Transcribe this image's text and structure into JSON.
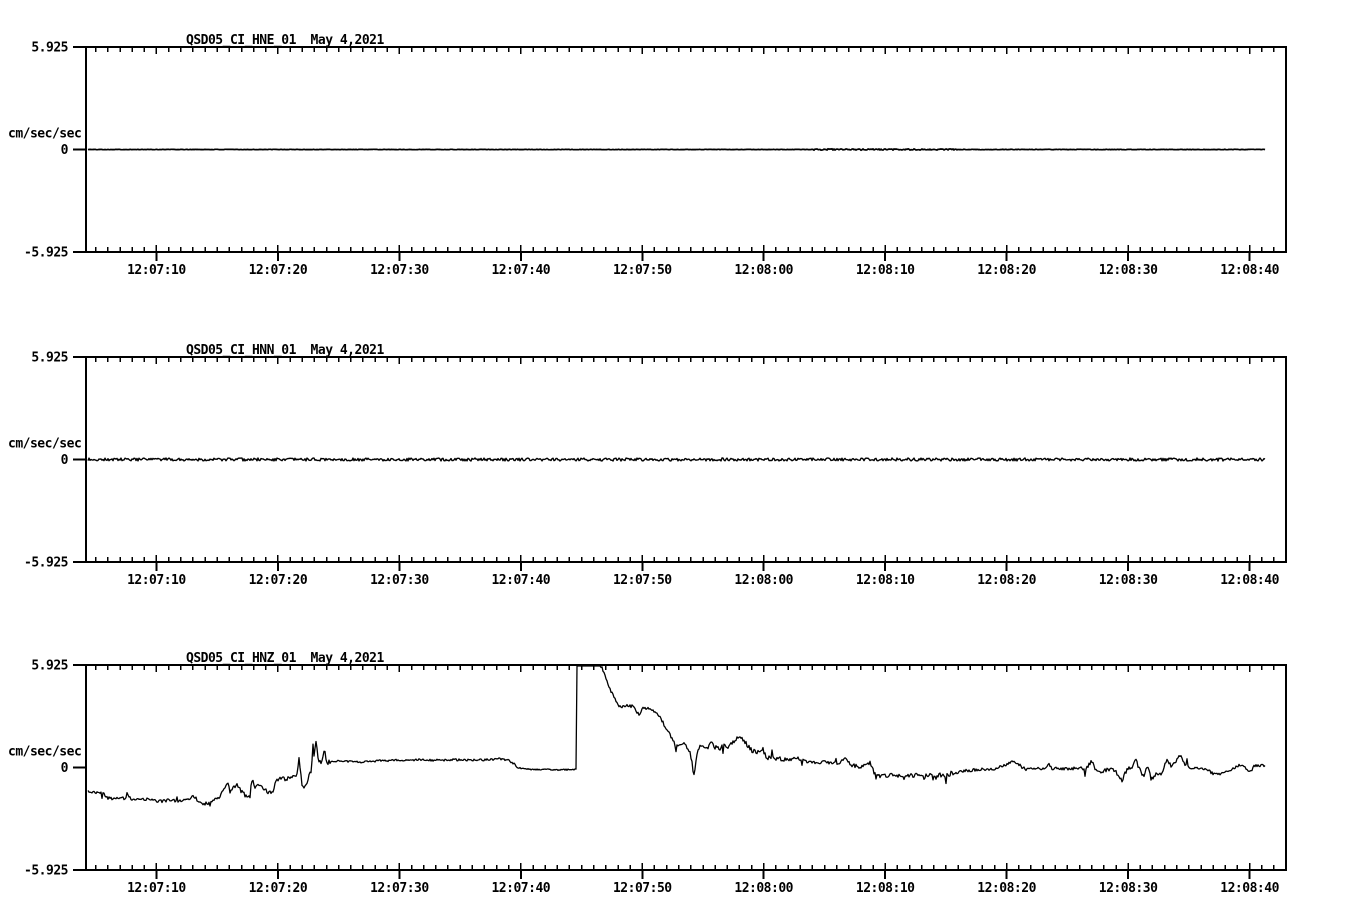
{
  "page": {
    "background": "#ffffff",
    "ink_color": "#000000",
    "description": "Three stacked seismic acceleration time-series panels"
  },
  "chart_data": [
    {
      "type": "line",
      "title": "QSD05_CI_HNE_01",
      "date": "May 4,2021",
      "ylabel": "cm/sec/sec",
      "ylim": [
        -5.925,
        5.925
      ],
      "y_ticks": [
        {
          "v": 5.925,
          "label": "5.925"
        },
        {
          "v": 0,
          "label": "0"
        },
        {
          "v": -5.925,
          "label": "-5.925"
        }
      ],
      "t_domain": [
        4.2,
        103
      ],
      "x_minor_interval_s": 1,
      "x_major_interval_s": 10,
      "x_ticks": [
        {
          "t": 10,
          "label": "12:07:10"
        },
        {
          "t": 20,
          "label": "12:07:20"
        },
        {
          "t": 30,
          "label": "12:07:30"
        },
        {
          "t": 40,
          "label": "12:07:40"
        },
        {
          "t": 50,
          "label": "12:07:50"
        },
        {
          "t": 60,
          "label": "12:08:00"
        },
        {
          "t": 70,
          "label": "12:08:10"
        },
        {
          "t": 80,
          "label": "12:08:20"
        },
        {
          "t": 90,
          "label": "12:08:30"
        },
        {
          "t": 100,
          "label": "12:08:40"
        }
      ],
      "trace": {
        "t_range": [
          4.4,
          101.3
        ],
        "keypoints": [
          [
            4.4,
            0
          ],
          [
            101.3,
            0
          ]
        ],
        "noise": [
          [
            4.2,
            64,
            0.013
          ],
          [
            64,
            76,
            0.04
          ],
          [
            76,
            103,
            0.016
          ]
        ]
      }
    },
    {
      "type": "line",
      "title": "QSD05_CI_HNN_01",
      "date": "May 4,2021",
      "ylabel": "cm/sec/sec",
      "ylim": [
        -5.925,
        5.925
      ],
      "y_ticks": [
        {
          "v": 5.925,
          "label": "5.925"
        },
        {
          "v": 0,
          "label": "0"
        },
        {
          "v": -5.925,
          "label": "-5.925"
        }
      ],
      "t_domain": [
        4.2,
        103
      ],
      "x_minor_interval_s": 1,
      "x_major_interval_s": 10,
      "x_ticks": [
        {
          "t": 10,
          "label": "12:07:10"
        },
        {
          "t": 20,
          "label": "12:07:20"
        },
        {
          "t": 30,
          "label": "12:07:30"
        },
        {
          "t": 40,
          "label": "12:07:40"
        },
        {
          "t": 50,
          "label": "12:07:50"
        },
        {
          "t": 60,
          "label": "12:08:00"
        },
        {
          "t": 70,
          "label": "12:08:10"
        },
        {
          "t": 80,
          "label": "12:08:20"
        },
        {
          "t": 90,
          "label": "12:08:30"
        },
        {
          "t": 100,
          "label": "12:08:40"
        }
      ],
      "trace": {
        "t_range": [
          4.4,
          101.3
        ],
        "keypoints": [
          [
            4.4,
            0
          ],
          [
            101.3,
            0
          ]
        ],
        "noise": [
          [
            4.2,
            103,
            0.085
          ]
        ]
      }
    },
    {
      "type": "line",
      "title": "QSD05_CI_HNZ_01",
      "date": "May 4,2021",
      "ylabel": "cm/sec/sec",
      "ylim": [
        -5.925,
        5.925
      ],
      "y_ticks": [
        {
          "v": 5.925,
          "label": "5.925"
        },
        {
          "v": 0,
          "label": "0"
        },
        {
          "v": -5.925,
          "label": "-5.925"
        }
      ],
      "t_domain": [
        4.2,
        103
      ],
      "x_minor_interval_s": 1,
      "x_major_interval_s": 10,
      "x_ticks": [
        {
          "t": 10,
          "label": "12:07:10"
        },
        {
          "t": 20,
          "label": "12:07:20"
        },
        {
          "t": 30,
          "label": "12:07:30"
        },
        {
          "t": 40,
          "label": "12:07:40"
        },
        {
          "t": 50,
          "label": "12:07:50"
        },
        {
          "t": 60,
          "label": "12:08:00"
        },
        {
          "t": 70,
          "label": "12:08:10"
        },
        {
          "t": 80,
          "label": "12:08:20"
        },
        {
          "t": 90,
          "label": "12:08:30"
        },
        {
          "t": 100,
          "label": "12:08:40"
        }
      ],
      "trace": {
        "t_range": [
          4.4,
          101.3
        ],
        "clip_level": 5.925,
        "keypoints": [
          [
            4.4,
            -1.4
          ],
          [
            5.2,
            -1.42
          ],
          [
            5.6,
            -1.5
          ],
          [
            5.9,
            -1.75
          ],
          [
            6.7,
            -1.82
          ],
          [
            7.4,
            -1.78
          ],
          [
            7.6,
            -1.5
          ],
          [
            7.9,
            -1.85
          ],
          [
            8.8,
            -1.8
          ],
          [
            9.7,
            -1.88
          ],
          [
            10.2,
            -1.95
          ],
          [
            11,
            -1.9
          ],
          [
            11.8,
            -1.95
          ],
          [
            12.6,
            -1.88
          ],
          [
            13.1,
            -1.65
          ],
          [
            13.5,
            -2.0
          ],
          [
            14,
            -2.1
          ],
          [
            14.6,
            -1.97
          ],
          [
            15.2,
            -1.7
          ],
          [
            15.85,
            -0.8
          ],
          [
            16.05,
            -1.4
          ],
          [
            16.3,
            -1.12
          ],
          [
            16.6,
            -1.02
          ],
          [
            16.9,
            -1.3
          ],
          [
            17.3,
            -1.62
          ],
          [
            17.65,
            -1.55
          ],
          [
            17.9,
            -0.55
          ],
          [
            18.1,
            -1.15
          ],
          [
            18.5,
            -1.06
          ],
          [
            18.9,
            -1.25
          ],
          [
            19.3,
            -1.5
          ],
          [
            19.6,
            -1.35
          ],
          [
            19.85,
            -0.68
          ],
          [
            20.3,
            -0.6
          ],
          [
            20.7,
            -0.68
          ],
          [
            21.1,
            -0.56
          ],
          [
            21.5,
            -0.62
          ],
          [
            21.75,
            0.55
          ],
          [
            21.95,
            -0.85
          ],
          [
            22.15,
            -1.25
          ],
          [
            22.35,
            -1.05
          ],
          [
            22.55,
            -0.4
          ],
          [
            22.75,
            -0.15
          ],
          [
            22.9,
            1.55
          ],
          [
            23,
            0.15
          ],
          [
            23.1,
            1.8
          ],
          [
            23.25,
            0.85
          ],
          [
            23.4,
            0.32
          ],
          [
            23.6,
            0.3
          ],
          [
            23.85,
            1.1
          ],
          [
            24,
            0.22
          ],
          [
            24.3,
            0.35
          ],
          [
            25,
            0.4
          ],
          [
            26,
            0.35
          ],
          [
            26.9,
            0.3
          ],
          [
            27.6,
            0.35
          ],
          [
            28.6,
            0.4
          ],
          [
            30,
            0.42
          ],
          [
            31.5,
            0.45
          ],
          [
            33,
            0.42
          ],
          [
            34.5,
            0.45
          ],
          [
            36,
            0.42
          ],
          [
            37.2,
            0.45
          ],
          [
            38.2,
            0.5
          ],
          [
            38.9,
            0.45
          ],
          [
            39.4,
            0.25
          ],
          [
            39.7,
            0.02
          ],
          [
            40.2,
            -0.08
          ],
          [
            41,
            -0.12
          ],
          [
            42,
            -0.1
          ],
          [
            43,
            -0.14
          ],
          [
            44,
            -0.12
          ],
          [
            44.55,
            -0.1
          ],
          [
            44.62,
            5.925
          ],
          [
            46.55,
            5.925
          ],
          [
            46.75,
            5.65
          ],
          [
            47,
            5.15
          ],
          [
            47.25,
            4.6
          ],
          [
            47.5,
            4.35
          ],
          [
            47.75,
            4.0
          ],
          [
            48,
            3.62
          ],
          [
            48.35,
            3.5
          ],
          [
            48.8,
            3.58
          ],
          [
            49.3,
            3.52
          ],
          [
            49.75,
            3.0
          ],
          [
            50,
            3.42
          ],
          [
            50.5,
            3.45
          ],
          [
            51,
            3.25
          ],
          [
            51.5,
            2.85
          ],
          [
            52,
            2.3
          ],
          [
            52.4,
            1.75
          ],
          [
            52.7,
            1.35
          ],
          [
            53,
            1.18
          ],
          [
            53.3,
            1.45
          ],
          [
            53.65,
            1.15
          ],
          [
            53.95,
            0.85
          ],
          [
            54.25,
            -0.45
          ],
          [
            54.6,
            1.05
          ],
          [
            54.9,
            1.3
          ],
          [
            55.3,
            1.05
          ],
          [
            55.7,
            1.45
          ],
          [
            56,
            1.15
          ],
          [
            56.35,
            1.05
          ],
          [
            56.7,
            1.3
          ],
          [
            57,
            1.15
          ],
          [
            57.5,
            1.5
          ],
          [
            58,
            1.85
          ],
          [
            58.4,
            1.55
          ],
          [
            58.9,
            1.05
          ],
          [
            59.4,
            0.85
          ],
          [
            59.9,
            1.1
          ],
          [
            60.2,
            0.6
          ],
          [
            61,
            0.5
          ],
          [
            62,
            0.45
          ],
          [
            62.8,
            0.55
          ],
          [
            63.5,
            0.35
          ],
          [
            64.5,
            0.3
          ],
          [
            65.5,
            0.3
          ],
          [
            66.3,
            0.25
          ],
          [
            66.7,
            0.6
          ],
          [
            67.2,
            0.15
          ],
          [
            67.8,
            0.05
          ],
          [
            68.3,
            0.1
          ],
          [
            68.7,
            0.35
          ],
          [
            69.1,
            -0.3
          ],
          [
            69.6,
            -0.5
          ],
          [
            70.5,
            -0.45
          ],
          [
            71.5,
            -0.52
          ],
          [
            72.5,
            -0.45
          ],
          [
            73.5,
            -0.5
          ],
          [
            74.2,
            -0.4
          ],
          [
            74.8,
            -0.48
          ],
          [
            75.5,
            -0.35
          ],
          [
            76.3,
            -0.2
          ],
          [
            77.2,
            -0.15
          ],
          [
            78,
            -0.08
          ],
          [
            78.8,
            -0.12
          ],
          [
            79.5,
            0.05
          ],
          [
            80.1,
            0.18
          ],
          [
            80.5,
            0.35
          ],
          [
            80.8,
            0.3
          ],
          [
            81.2,
            0.05
          ],
          [
            81.6,
            -0.1
          ],
          [
            82.2,
            -0.05
          ],
          [
            82.8,
            -0.08
          ],
          [
            83.3,
            -0.02
          ],
          [
            83.45,
            0.3
          ],
          [
            83.7,
            -0.06
          ],
          [
            84.4,
            -0.05
          ],
          [
            85.1,
            -0.1
          ],
          [
            85.8,
            -0.03
          ],
          [
            86.5,
            -0.06
          ],
          [
            87,
            0.35
          ],
          [
            87.3,
            -0.12
          ],
          [
            87.8,
            -0.25
          ],
          [
            88.3,
            -0.12
          ],
          [
            88.9,
            -0.16
          ],
          [
            89.5,
            -0.75
          ],
          [
            89.9,
            -0.1
          ],
          [
            90.3,
            0.0
          ],
          [
            90.6,
            0.5
          ],
          [
            90.9,
            -0.05
          ],
          [
            91.3,
            -0.6
          ],
          [
            91.6,
            0.2
          ],
          [
            91.9,
            -0.65
          ],
          [
            92.3,
            -0.42
          ],
          [
            92.8,
            -0.3
          ],
          [
            93.2,
            0.55
          ],
          [
            93.5,
            0.15
          ],
          [
            93.9,
            0.3
          ],
          [
            94.3,
            0.7
          ],
          [
            94.7,
            0.12
          ],
          [
            95.2,
            0.0
          ],
          [
            95.8,
            -0.03
          ],
          [
            96.4,
            -0.08
          ],
          [
            96.9,
            -0.32
          ],
          [
            97.5,
            -0.4
          ],
          [
            98.1,
            -0.22
          ],
          [
            98.6,
            -0.06
          ],
          [
            99,
            0.08
          ],
          [
            99.4,
            0.15
          ],
          [
            99.8,
            -0.12
          ],
          [
            100.1,
            -0.28
          ],
          [
            100.3,
            0.02
          ],
          [
            100.45,
            0.1
          ],
          [
            101.3,
            0.1
          ]
        ],
        "noise": [
          [
            4.2,
            15.5,
            0.09
          ],
          [
            15.5,
            24.3,
            0.12
          ],
          [
            24.3,
            39.5,
            0.06
          ],
          [
            39.5,
            44.6,
            0.04
          ],
          [
            44.6,
            46.6,
            0.015
          ],
          [
            46.6,
            51.5,
            0.08
          ],
          [
            51.5,
            62,
            0.13
          ],
          [
            62,
            69,
            0.1
          ],
          [
            69,
            76,
            0.12
          ],
          [
            76,
            86,
            0.08
          ],
          [
            86,
            95,
            0.11
          ],
          [
            95,
            103,
            0.08
          ]
        ]
      }
    }
  ]
}
